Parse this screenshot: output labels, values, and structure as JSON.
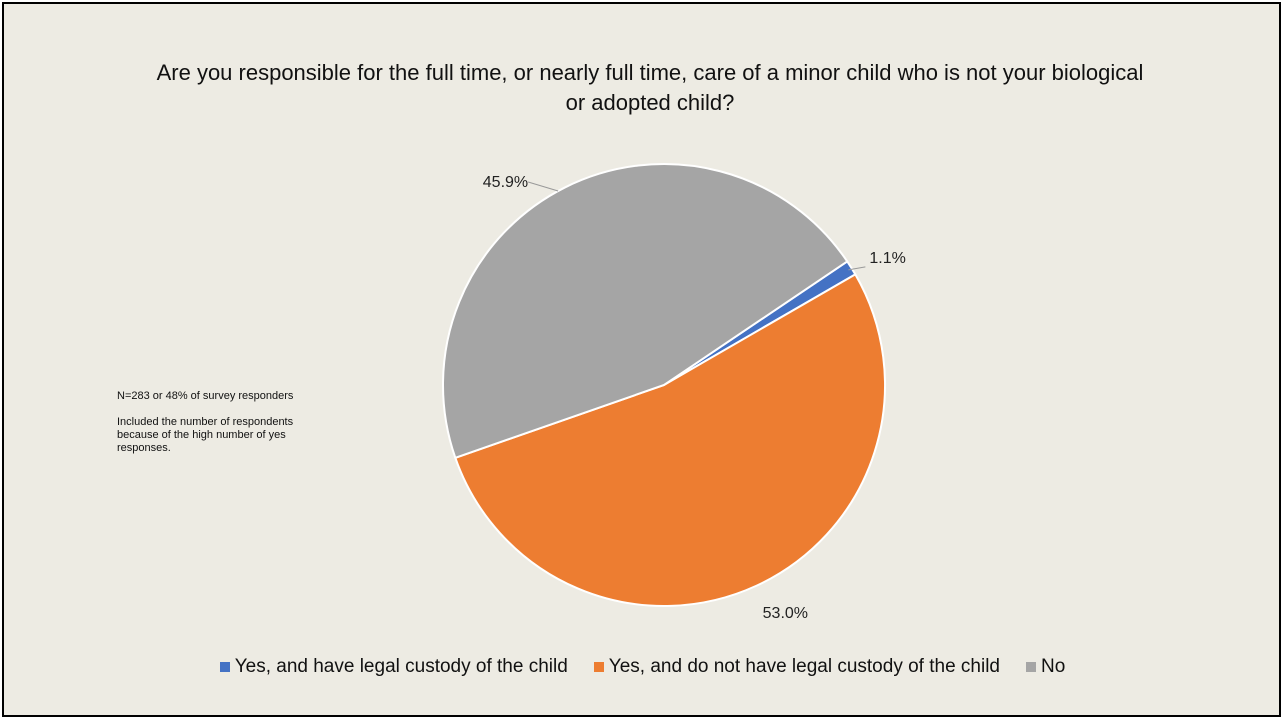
{
  "chart_data": {
    "type": "pie",
    "title": "Are you responsible for the full time, or nearly full time, care of a minor child who is not your biological or adopted child?",
    "slices": [
      {
        "name": "Yes, and have legal custody of the child",
        "value": 1.1,
        "label": "1.1%",
        "color": "#4472c4"
      },
      {
        "name": "Yes, and do not have legal custody of the child",
        "value": 53.0,
        "label": "53.0%",
        "color": "#ed7d31"
      },
      {
        "name": "No",
        "value": 45.9,
        "label": "45.9%",
        "color": "#a5a5a5"
      }
    ],
    "legend_position": "bottom",
    "start_angle_deg": 56
  },
  "note": {
    "line1": "N=283 or 48% of survey responders",
    "line2": "Included the number of respondents because of the high number of yes responses."
  }
}
